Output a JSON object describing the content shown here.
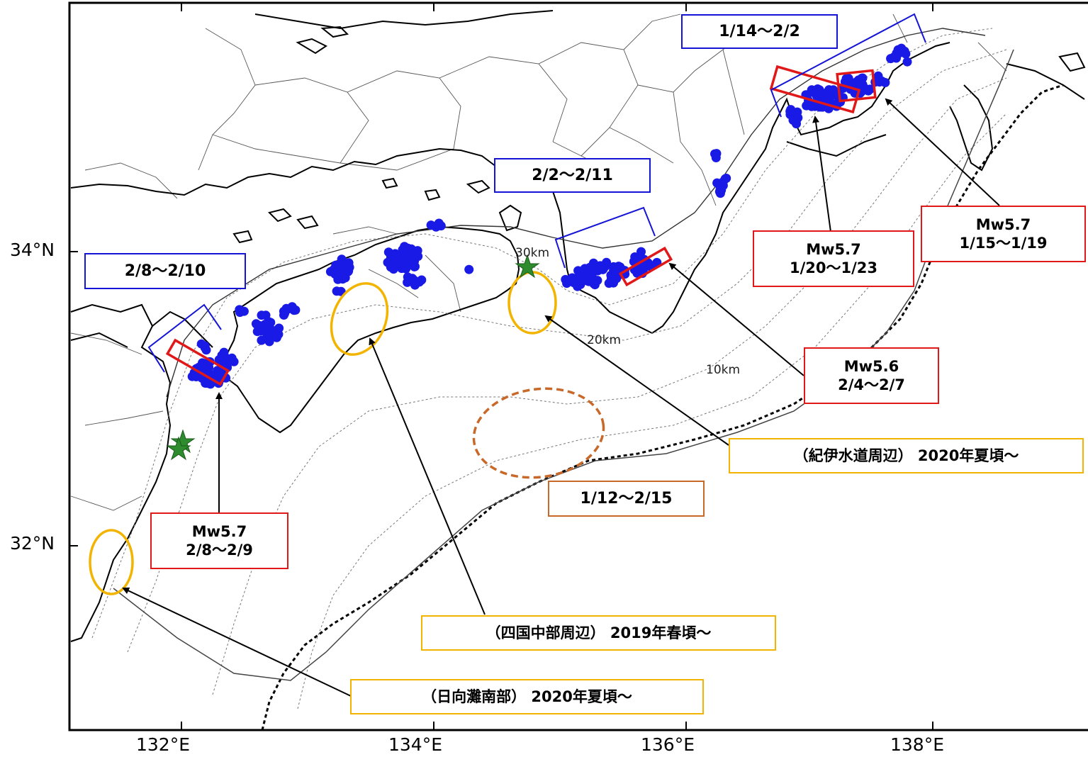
{
  "axes": {
    "lon_ticks": [
      "132°E",
      "134°E",
      "136°E",
      "138°E"
    ],
    "lat_ticks": [
      "34°N",
      "32°N"
    ]
  },
  "depth_contours": [
    "30km",
    "20km",
    "10km"
  ],
  "labels": {
    "period_west": "2/8〜2/10",
    "period_shikoku": "2/2〜2/11",
    "period_tokai": "1/14〜2/2",
    "mw_bungo_mag": "Mw5.7",
    "mw_bungo_date": "2/8〜2/9",
    "mw_aichi_mag": "Mw5.7",
    "mw_aichi_date": "1/20〜1/23",
    "mw_tokai_mag": "Mw5.7",
    "mw_tokai_date": "1/15〜1/19",
    "mw_kii_mag": "Mw5.6",
    "mw_kii_date": "2/4〜2/7",
    "kii_channel": "（紀伊水道周辺） 2020年夏頃〜",
    "shikoku_central": "（四国中部周辺） 2019年春頃〜",
    "hyuganada": "（日向灘南部） 2020年夏頃〜",
    "offshore_period": "1/12〜2/15"
  },
  "colors": {
    "tremor": "#1a1ae6",
    "event_box": "#e01818",
    "period_bracket": "#1414d6",
    "long_term_sse": "#f2b400",
    "offshore": "#c8692a",
    "star": "#2e8b2e"
  }
}
